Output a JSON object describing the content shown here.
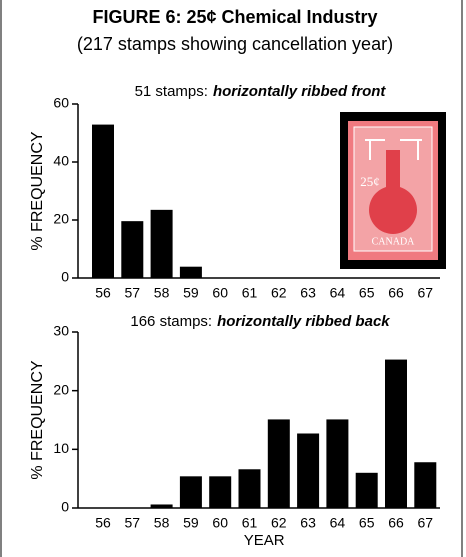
{
  "title": "FIGURE 6: 25¢ Chemical Industry",
  "subtitle": "(217 stamps showing cancellation year)",
  "stamp": {
    "denomination": "25¢",
    "country": "CANADA"
  },
  "chart_data": [
    {
      "type": "bar",
      "title": {
        "count": "51 stamps:",
        "emphasis": "horizontally ribbed front"
      },
      "y_label": "% FREQUENCY",
      "categories": [
        "56",
        "57",
        "58",
        "59",
        "60",
        "61",
        "62",
        "63",
        "64",
        "65",
        "66",
        "67"
      ],
      "values": [
        52.9,
        19.6,
        23.5,
        3.9,
        0,
        0,
        0,
        0,
        0,
        0,
        0,
        0
      ],
      "color": "#000000",
      "ylim": [
        0,
        60
      ],
      "yticks": [
        0,
        20,
        40,
        60
      ]
    },
    {
      "type": "bar",
      "title": {
        "count": "166 stamps:",
        "emphasis": "horizontally ribbed back"
      },
      "y_label": "% FREQUENCY",
      "x_label": "YEAR",
      "categories": [
        "56",
        "57",
        "58",
        "59",
        "60",
        "61",
        "62",
        "63",
        "64",
        "65",
        "66",
        "67"
      ],
      "values": [
        0,
        0,
        0.6,
        5.4,
        5.4,
        6.6,
        15.1,
        12.7,
        15.1,
        6.0,
        25.3,
        7.8
      ],
      "color": "#000000",
      "ylim": [
        0,
        30
      ],
      "yticks": [
        0,
        10,
        20,
        30
      ]
    }
  ]
}
